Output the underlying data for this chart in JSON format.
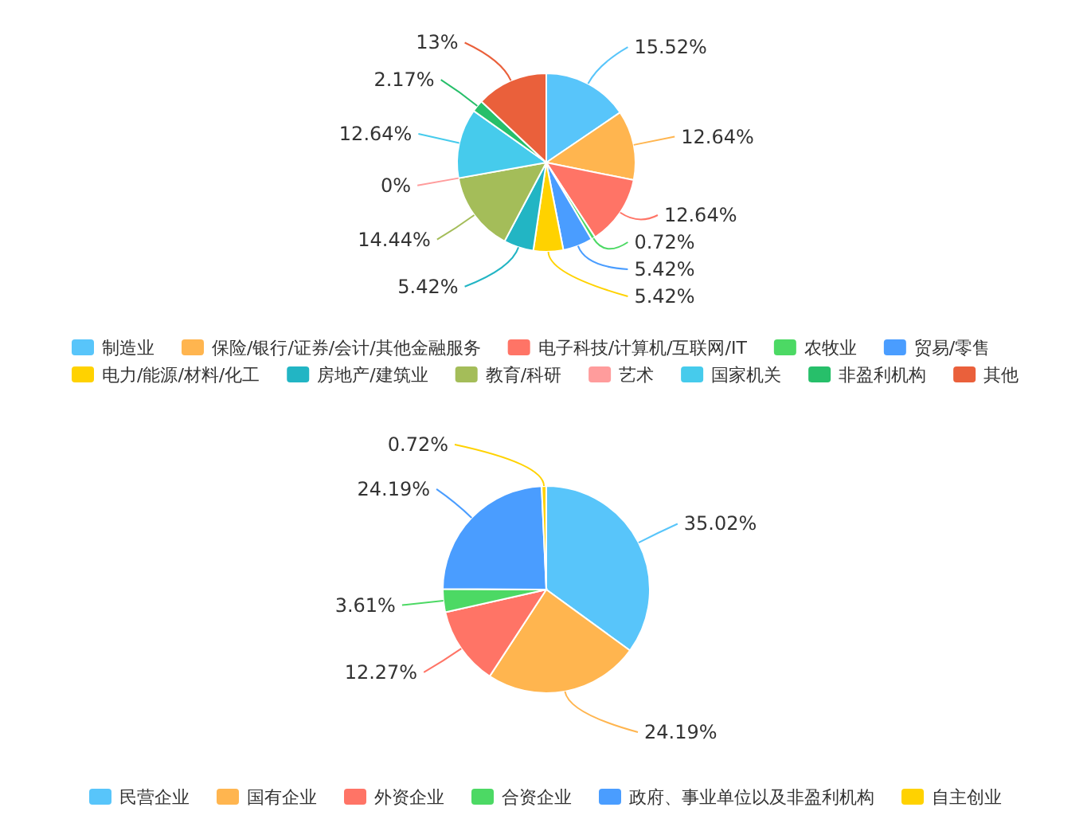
{
  "chart_data": [
    {
      "type": "pie",
      "legend": "bottom",
      "value_labels": [
        "15.52%",
        "12.64%",
        "12.64%",
        "0.72%",
        "5.42%",
        "5.42%",
        "5.42%",
        "14.44%",
        "0%",
        "12.64%",
        "2.17%",
        "13%"
      ],
      "categories": [
        "制造业",
        "保险/银行/证券/会计/其他金融服务",
        "电子科技/计算机/互联网/IT",
        "农牧业",
        "贸易/零售",
        "电力/能源/材料/化工",
        "房地产/建筑业",
        "教育/科研",
        "艺术",
        "国家机关",
        "非盈利机构",
        "其他"
      ],
      "values": [
        15.52,
        12.64,
        12.64,
        0.72,
        5.42,
        5.42,
        5.42,
        14.44,
        0,
        12.64,
        2.17,
        13
      ],
      "colors": [
        "#58c5fa",
        "#ffb54f",
        "#ff7466",
        "#4cd964",
        "#4a9dff",
        "#ffd200",
        "#22b5c4",
        "#a4bd59",
        "#ff9c9c",
        "#46cbec",
        "#27bf6a",
        "#ea603b"
      ]
    },
    {
      "type": "pie",
      "legend": "bottom",
      "value_labels": [
        "35.02%",
        "24.19%",
        "12.27%",
        "3.61%",
        "24.19%",
        "0.72%"
      ],
      "categories": [
        "民营企业",
        "国有企业",
        "外资企业",
        "合资企业",
        "政府、事业单位以及非盈利机构",
        "自主创业"
      ],
      "values": [
        35.02,
        24.19,
        12.27,
        3.61,
        24.19,
        0.72
      ],
      "colors": [
        "#58c5fa",
        "#ffb54f",
        "#ff7466",
        "#4cd964",
        "#4a9dff",
        "#ffd200"
      ]
    }
  ]
}
